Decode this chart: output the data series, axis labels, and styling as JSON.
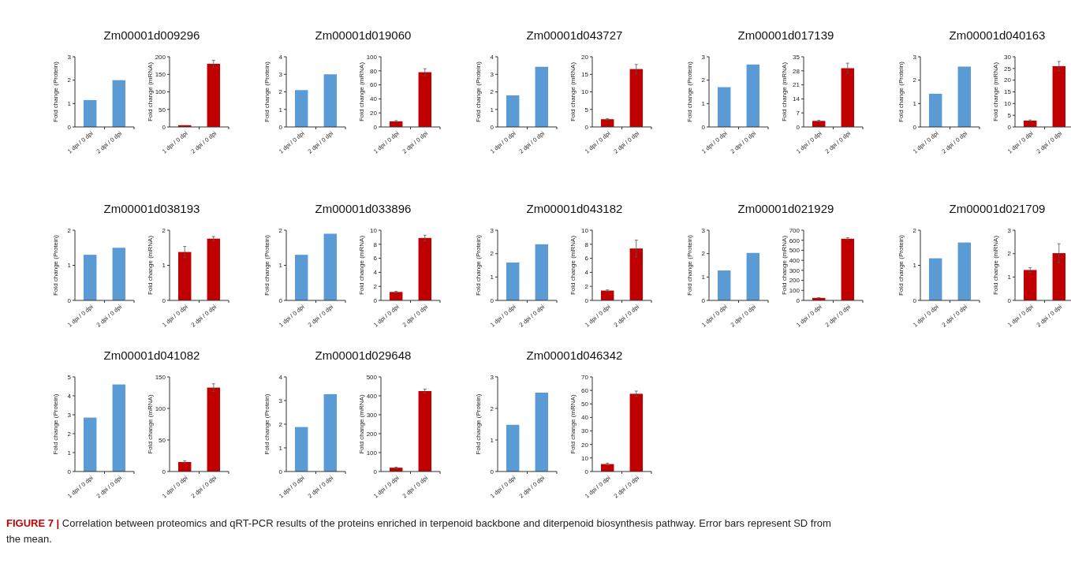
{
  "chart_data": [
    {
      "type": "bar",
      "title": "Zm00001d009296",
      "ylabel": "Fold change (Protein)",
      "categories": [
        "1 dpi / 0 dpi",
        "2 dpi / 0 dpi"
      ],
      "values": [
        1.15,
        2.0
      ],
      "color": "#5b9bd5",
      "ylim": [
        0,
        3
      ],
      "yticks": [
        0,
        1,
        2,
        3
      ]
    },
    {
      "type": "bar",
      "ylabel": "Fold change (mRNA)",
      "categories": [
        "1 dpi / 0 dpi",
        "2 dpi / 0 dpi"
      ],
      "values": [
        5,
        180
      ],
      "errors": [
        null,
        10
      ],
      "color": "#c00000",
      "ylim": [
        0,
        200
      ],
      "yticks": [
        0,
        50,
        100,
        150,
        200
      ]
    },
    {
      "type": "bar",
      "title": "Zm00001d019060",
      "ylabel": "Fold change (Protein)",
      "categories": [
        "1 dpi / 0 dpi",
        "2 dpi / 0 dpi"
      ],
      "values": [
        2.1,
        3.0
      ],
      "color": "#5b9bd5",
      "ylim": [
        0,
        4
      ],
      "yticks": [
        0,
        1,
        2,
        3,
        4
      ]
    },
    {
      "type": "bar",
      "ylabel": "Fold change (mRNA)",
      "categories": [
        "1 dpi / 0 dpi",
        "2 dpi / 0 dpi"
      ],
      "values": [
        8,
        78
      ],
      "errors": [
        1,
        5
      ],
      "color": "#c00000",
      "ylim": [
        0,
        100
      ],
      "yticks": [
        0,
        20,
        40,
        60,
        80,
        100
      ]
    },
    {
      "type": "bar",
      "title": "Zm00001d043727",
      "ylabel": "Fold change (Protein)",
      "categories": [
        "1 dpi / 0 dpi",
        "2 dpi / 0 dpi"
      ],
      "values": [
        1.8,
        3.43
      ],
      "color": "#5b9bd5",
      "ylim": [
        0,
        4
      ],
      "yticks": [
        0,
        1,
        2,
        3,
        4
      ]
    },
    {
      "type": "bar",
      "ylabel": "Fold change (mRNA)",
      "categories": [
        "1 dpi / 0 dpi",
        "2 dpi / 0 dpi"
      ],
      "values": [
        2.2,
        16.5
      ],
      "errors": [
        0.2,
        1.3
      ],
      "color": "#c00000",
      "ylim": [
        0,
        20
      ],
      "yticks": [
        0,
        5,
        10,
        15,
        20
      ]
    },
    {
      "type": "bar",
      "title": "Zm00001d017139",
      "ylabel": "Fold change (Protein)",
      "categories": [
        "1 dpi / 0 dpi",
        "2 dpi / 0 dpi"
      ],
      "values": [
        1.7,
        2.67
      ],
      "color": "#5b9bd5",
      "ylim": [
        0,
        3
      ],
      "yticks": [
        0,
        1,
        2,
        3
      ]
    },
    {
      "type": "bar",
      "ylabel": "Fold change (mRNA)",
      "categories": [
        "1 dpi / 0 dpi",
        "2 dpi / 0 dpi"
      ],
      "values": [
        3,
        29.3
      ],
      "errors": [
        0.3,
        2.5
      ],
      "color": "#c00000",
      "ylim": [
        0,
        35
      ],
      "yticks": [
        0,
        7,
        14,
        21,
        28,
        35
      ]
    },
    {
      "type": "bar",
      "title": "Zm00001d040163",
      "ylabel": "Fold change (Protein)",
      "categories": [
        "1 dpi / 0 dpi",
        "2 dpi / 0 dpi"
      ],
      "values": [
        1.42,
        2.58
      ],
      "color": "#5b9bd5",
      "ylim": [
        0,
        3
      ],
      "yticks": [
        0,
        1,
        2,
        3
      ]
    },
    {
      "type": "bar",
      "ylabel": "Fold change (mRNA)",
      "categories": [
        "1 dpi / 0 dpi",
        "2 dpi / 0 dpi"
      ],
      "values": [
        2.7,
        26
      ],
      "errors": [
        0.3,
        2
      ],
      "color": "#c00000",
      "ylim": [
        0,
        30
      ],
      "yticks": [
        0,
        5,
        10,
        15,
        20,
        25,
        30
      ]
    },
    {
      "type": "bar",
      "title": "Zm00001d038193",
      "ylabel": "Fold change (Protein)",
      "categories": [
        "1 dpi / 0 dpi",
        "2 dpi / 0 dpi"
      ],
      "values": [
        1.3,
        1.5
      ],
      "color": "#5b9bd5",
      "ylim": [
        0,
        2
      ],
      "yticks": [
        0,
        1,
        2
      ]
    },
    {
      "type": "bar",
      "ylabel": "Fold change (mRNA)",
      "categories": [
        "1 dpi / 0 dpi",
        "2 dpi / 0 dpi"
      ],
      "values": [
        1.38,
        1.76
      ],
      "errors": [
        0.16,
        0.06
      ],
      "color": "#c00000",
      "ylim": [
        0,
        2
      ],
      "yticks": [
        0,
        1,
        2
      ]
    },
    {
      "type": "bar",
      "title": "Zm00001d033896",
      "ylabel": "Fold change (Protein)",
      "categories": [
        "1 dpi / 0 dpi",
        "2 dpi / 0 dpi"
      ],
      "values": [
        1.3,
        1.9
      ],
      "color": "#5b9bd5",
      "ylim": [
        0,
        2
      ],
      "yticks": [
        0,
        1,
        2
      ]
    },
    {
      "type": "bar",
      "ylabel": "Fold change (mRNA)",
      "categories": [
        "1 dpi / 0 dpi",
        "2 dpi / 0 dpi"
      ],
      "values": [
        1.2,
        8.9
      ],
      "errors": [
        0.1,
        0.4
      ],
      "color": "#c00000",
      "ylim": [
        0,
        10
      ],
      "yticks": [
        0,
        2,
        4,
        6,
        8,
        10
      ]
    },
    {
      "type": "bar",
      "title": "Zm00001d043182",
      "ylabel": "Fold change (Protein)",
      "categories": [
        "1 dpi / 0 dpi",
        "2 dpi / 0 dpi"
      ],
      "values": [
        1.62,
        2.4
      ],
      "color": "#5b9bd5",
      "ylim": [
        0,
        3
      ],
      "yticks": [
        0,
        1,
        2,
        3
      ]
    },
    {
      "type": "bar",
      "ylabel": "Fold change (mRNA)",
      "categories": [
        "1 dpi / 0 dpi",
        "2 dpi / 0 dpi"
      ],
      "values": [
        1.4,
        7.4
      ],
      "errors": [
        0.1,
        1.2
      ],
      "color": "#c00000",
      "ylim": [
        0,
        10
      ],
      "yticks": [
        0,
        2,
        4,
        6,
        8,
        10
      ]
    },
    {
      "type": "bar",
      "title": "Zm00001d021929",
      "ylabel": "Fold change (Protein)",
      "categories": [
        "1 dpi / 0 dpi",
        "2 dpi / 0 dpi"
      ],
      "values": [
        1.28,
        2.03
      ],
      "color": "#5b9bd5",
      "ylim": [
        0,
        3
      ],
      "yticks": [
        0,
        1,
        2,
        3
      ]
    },
    {
      "type": "bar",
      "ylabel": "Fold change (mRNA)",
      "categories": [
        "1 dpi / 0 dpi",
        "2 dpi / 0 dpi"
      ],
      "values": [
        25,
        615
      ],
      "errors": [
        3,
        10
      ],
      "color": "#c00000",
      "ylim": [
        0,
        700
      ],
      "yticks": [
        0,
        100,
        200,
        300,
        400,
        500,
        600,
        700
      ]
    },
    {
      "type": "bar",
      "title": "Zm00001d021709",
      "ylabel": "Fold change (Protein)",
      "categories": [
        "1 dpi / 0 dpi",
        "2 dpi / 0 dpi"
      ],
      "values": [
        1.2,
        1.65
      ],
      "color": "#5b9bd5",
      "ylim": [
        0,
        2
      ],
      "yticks": [
        0,
        1,
        2
      ]
    },
    {
      "type": "bar",
      "ylabel": "Fold change (mRNA)",
      "categories": [
        "1 dpi / 0 dpi",
        "2 dpi / 0 dpi"
      ],
      "values": [
        1.3,
        2.02
      ],
      "errors": [
        0.1,
        0.4
      ],
      "color": "#c00000",
      "ylim": [
        0,
        3
      ],
      "yticks": [
        0,
        1,
        2,
        3
      ]
    },
    {
      "type": "bar",
      "title": "Zm00001d041082",
      "ylabel": "Fold change (Protein)",
      "categories": [
        "1 dpi / 0 dpi",
        "2 dpi / 0 dpi"
      ],
      "values": [
        2.85,
        4.6
      ],
      "color": "#5b9bd5",
      "ylim": [
        0,
        5
      ],
      "yticks": [
        0,
        1,
        2,
        3,
        4,
        5
      ]
    },
    {
      "type": "bar",
      "ylabel": "Fold change (mRNA)",
      "categories": [
        "1 dpi / 0 dpi",
        "2 dpi / 0 dpi"
      ],
      "values": [
        15,
        133
      ],
      "errors": [
        2,
        6
      ],
      "color": "#c00000",
      "ylim": [
        0,
        150
      ],
      "yticks": [
        0,
        50,
        100,
        150
      ]
    },
    {
      "type": "bar",
      "title": "Zm00001d029648",
      "ylabel": "Fold change (Protein)",
      "categories": [
        "1 dpi / 0 dpi",
        "2 dpi / 0 dpi"
      ],
      "values": [
        1.88,
        3.27
      ],
      "color": "#5b9bd5",
      "ylim": [
        0,
        4
      ],
      "yticks": [
        0,
        1,
        2,
        3,
        4
      ]
    },
    {
      "type": "bar",
      "ylabel": "Fold change (mRNA)",
      "categories": [
        "1 dpi / 0 dpi",
        "2 dpi / 0 dpi"
      ],
      "values": [
        20,
        425
      ],
      "errors": [
        3,
        10
      ],
      "color": "#c00000",
      "ylim": [
        0,
        500
      ],
      "yticks": [
        0,
        100,
        200,
        300,
        400,
        500
      ]
    },
    {
      "type": "bar",
      "title": "Zm00001d046342",
      "ylabel": "Fold change (Protein)",
      "categories": [
        "1 dpi / 0 dpi",
        "2 dpi / 0 dpi"
      ],
      "values": [
        1.48,
        2.5
      ],
      "color": "#5b9bd5",
      "ylim": [
        0,
        3
      ],
      "yticks": [
        0,
        1,
        2,
        3
      ]
    },
    {
      "type": "bar",
      "ylabel": "Fold change (mRNA)",
      "categories": [
        "1 dpi / 0 dpi",
        "2 dpi / 0 dpi"
      ],
      "values": [
        5.5,
        57.5
      ],
      "errors": [
        0.7,
        2
      ],
      "color": "#c00000",
      "ylim": [
        0,
        70
      ],
      "yticks": [
        0,
        10,
        20,
        30,
        40,
        50,
        60,
        70
      ],
      "annotations": [
        "FIGURE 7 | Correlation between proteomics and qRT-PCR results of the proteins enriched in terpenoid backbone and diterpenoid biosynthesis pathway. Error bars represent SD from the mean."
      ]
    }
  ]
}
